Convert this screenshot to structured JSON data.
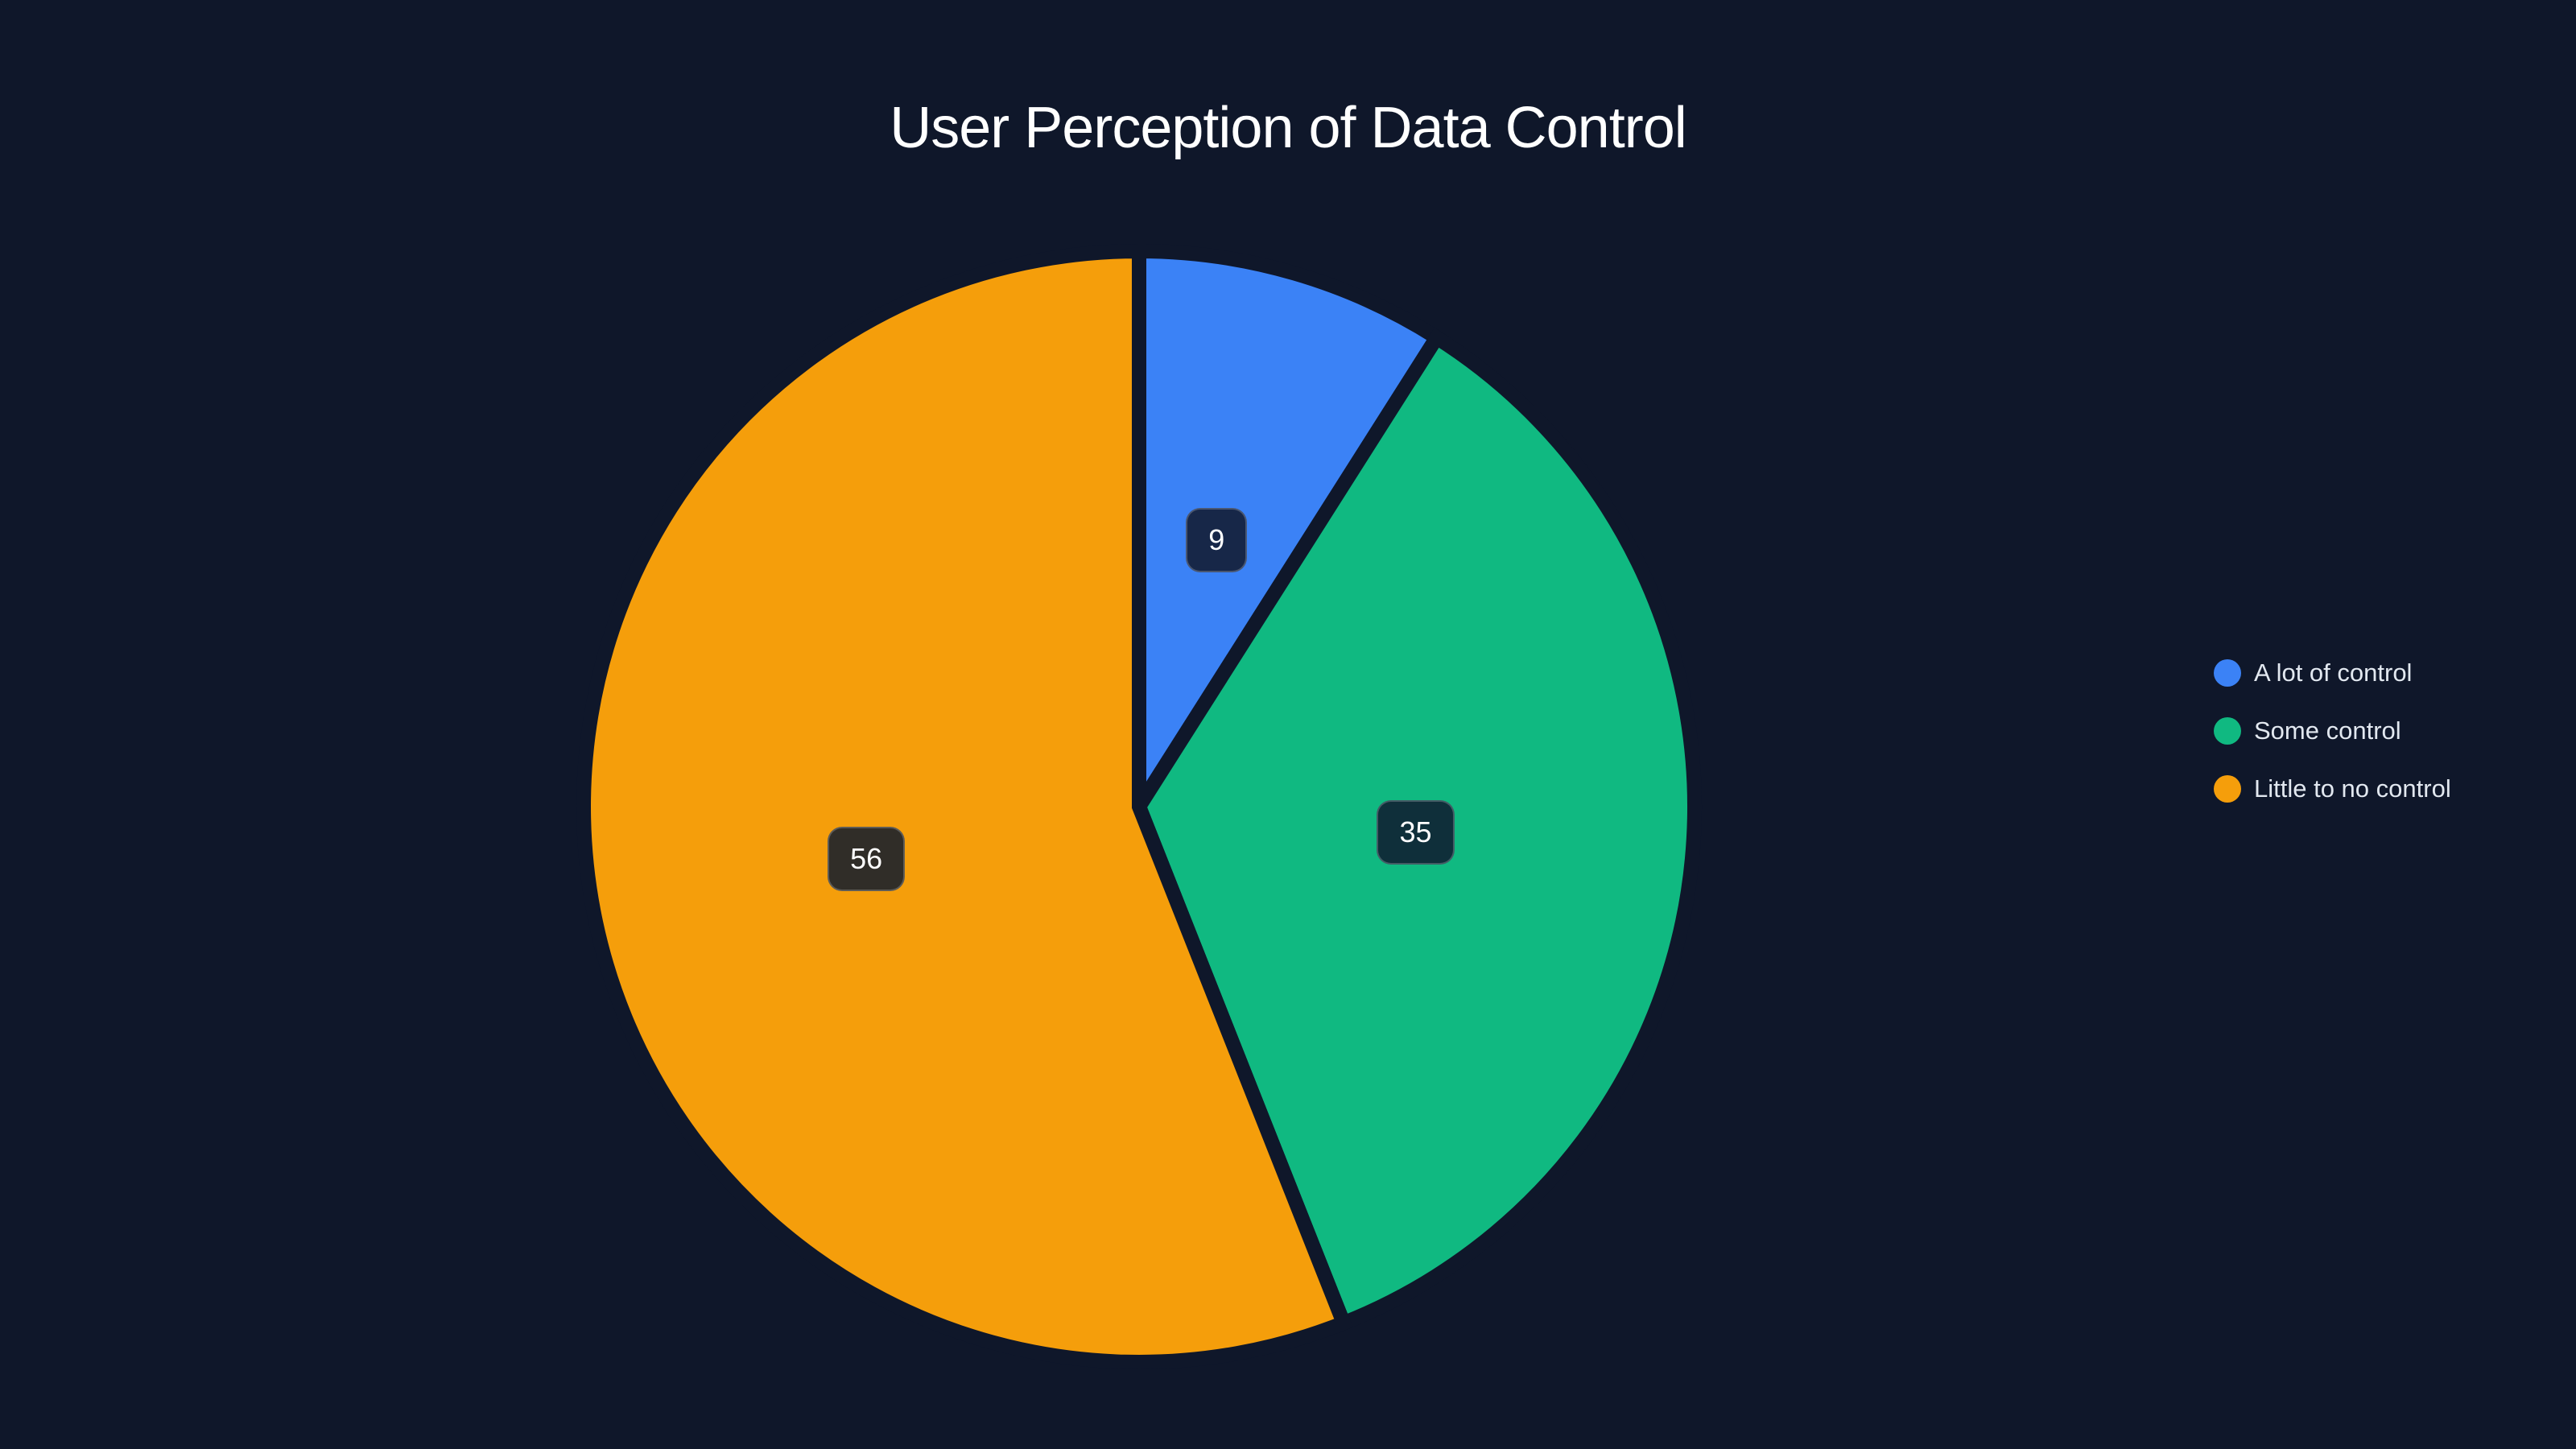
{
  "title": "User Perception of Data Control",
  "chart_data": {
    "type": "pie",
    "title": "User Perception of Data Control",
    "categories": [
      "A lot of control",
      "Some control",
      "Little to no control"
    ],
    "values": [
      9,
      35,
      56
    ],
    "colors": [
      "#3b82f6",
      "#10b981",
      "#f59e0b"
    ],
    "label_backgrounds": [
      "#172748",
      "#0f2f3a",
      "#302d28"
    ],
    "start_angle_deg": 0,
    "direction": "clockwise",
    "legend_position": "right",
    "show_data_labels": true
  },
  "legend": {
    "items": [
      {
        "label": "A lot of control",
        "color": "#3b82f6"
      },
      {
        "label": "Some control",
        "color": "#10b981"
      },
      {
        "label": "Little to no control",
        "color": "#f59e0b"
      }
    ]
  },
  "colors": {
    "background": "#0f172a",
    "title_text": "#ffffff",
    "legend_text": "#e2e8f0"
  }
}
